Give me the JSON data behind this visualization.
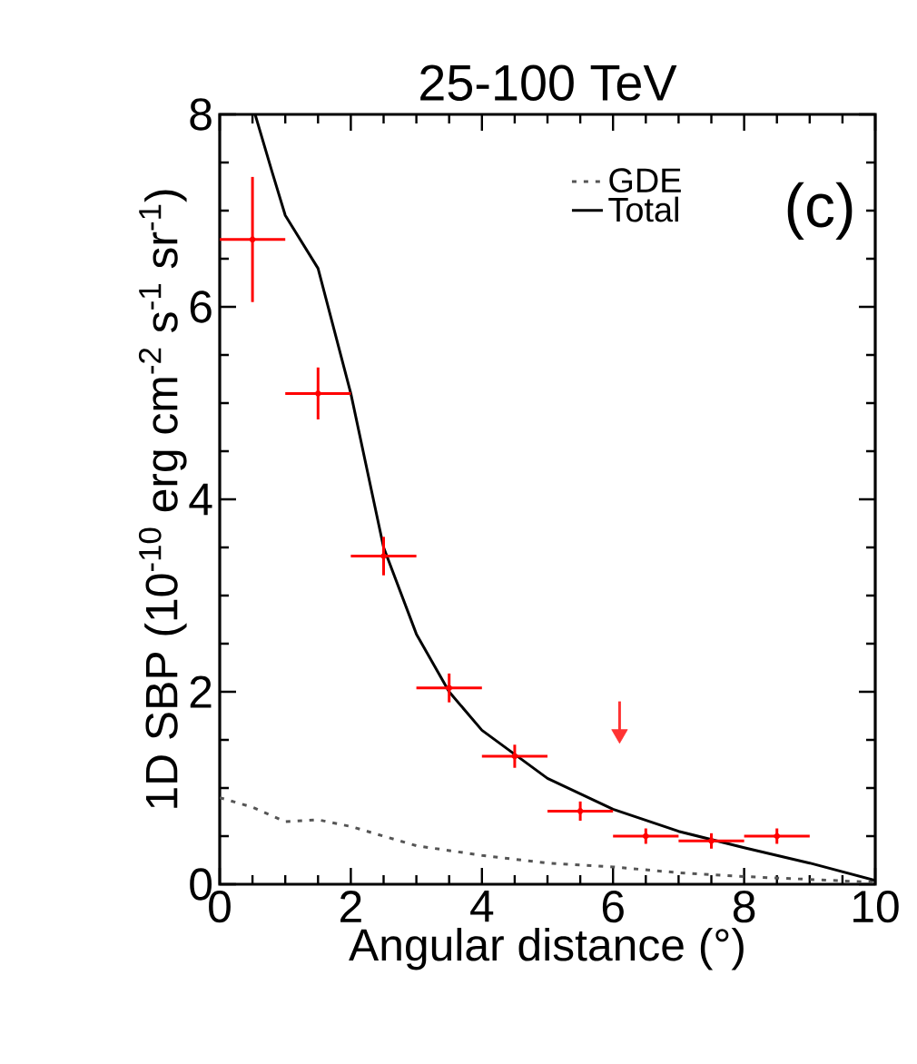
{
  "chart_data": {
    "type": "line",
    "title": "25-100 TeV",
    "xlabel": "Angular distance (°)",
    "ylabel": "1D SBP (10$^{-10}$ erg cm$^{-2}$ s$^{-1}$ sr$^{-1}$)",
    "xlim": [
      0,
      10
    ],
    "ylim": [
      0,
      8
    ],
    "xticks": [
      0,
      2,
      4,
      6,
      8,
      10
    ],
    "yticks": [
      0,
      2,
      4,
      6,
      8
    ],
    "legend": "top right",
    "grid": false,
    "annotations": [
      "(c)"
    ],
    "series": [
      {
        "name": "GDE",
        "color": "#555555",
        "line_style": "dotted",
        "x": [
          0,
          0.5,
          1.0,
          1.5,
          2.0,
          3.0,
          4.0,
          5.0,
          6.0,
          7.0,
          8.0,
          9.0,
          10.0
        ],
        "values": [
          0.9,
          0.8,
          0.65,
          0.67,
          0.6,
          0.4,
          0.3,
          0.22,
          0.18,
          0.12,
          0.08,
          0.05,
          0.02
        ]
      },
      {
        "name": "Total",
        "color": "#000000",
        "line_style": "solid",
        "x": [
          0.54,
          0.8,
          1.0,
          1.5,
          2.0,
          2.5,
          3.0,
          3.5,
          4.0,
          4.5,
          5.0,
          6.0,
          7.0,
          8.0,
          9.0,
          10.0
        ],
        "values": [
          8.0,
          7.4,
          6.95,
          6.4,
          5.1,
          3.5,
          2.6,
          2.0,
          1.6,
          1.35,
          1.1,
          0.78,
          0.55,
          0.38,
          0.22,
          0.04
        ]
      },
      {
        "type": "scatter",
        "marker": "circle",
        "color": "#ff0000",
        "x": [
          0.5,
          1.5,
          2.5,
          3.5,
          4.5,
          5.5,
          6.5,
          7.5,
          8.5
        ],
        "values": [
          6.7,
          5.1,
          3.41,
          2.04,
          1.33,
          0.76,
          0.5,
          0.45,
          0.5
        ],
        "errors": [
          0.65,
          0.27,
          0.2,
          0.15,
          0.12,
          0.1,
          0.08,
          0.08,
          0.08
        ],
        "xerrors": [
          0.5,
          0.5,
          0.5,
          0.5,
          0.5,
          0.5,
          0.5,
          0.5,
          0.5
        ]
      },
      {
        "type": "scatter",
        "marker": "triangle",
        "color": "#ff3333",
        "x": [
          6.1
        ],
        "values": [
          1.56
        ],
        "errors": [
          [
            1.56,
            1.9
          ]
        ]
      }
    ]
  }
}
